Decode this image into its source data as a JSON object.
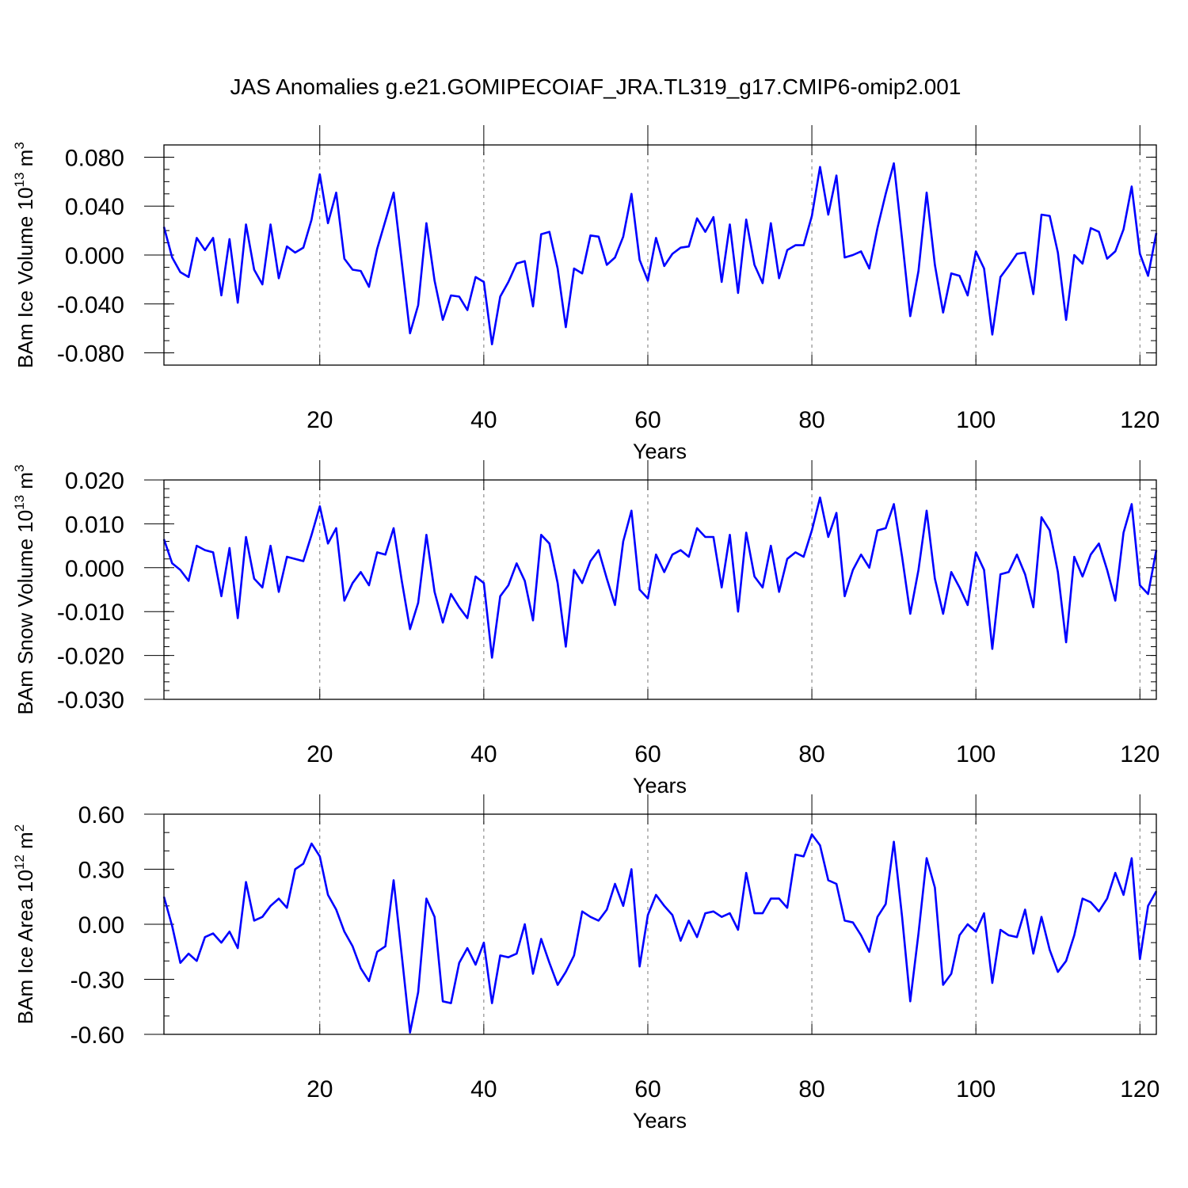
{
  "figure_title": "JAS Anomalies g.e21.GOMIPECOIAF_JRA.TL319_g17.CMIP6-omip2.001",
  "line_color": "#0000ff",
  "chart_data": [
    {
      "type": "line",
      "ylabel": "BAm Ice Volume 10",
      "ylabel_exp": "13",
      "ylabel_unit": " m",
      "ylabel_unit_exp": "3",
      "xlabel": "Years",
      "xlim": [
        1,
        122
      ],
      "ylim": [
        -0.09,
        0.09
      ],
      "x_ticks": [
        20,
        40,
        60,
        80,
        100,
        120
      ],
      "x_tick_labels": [
        "20",
        "40",
        "60",
        "80",
        "100",
        "120"
      ],
      "y_ticks": [
        -0.08,
        -0.04,
        0.0,
        0.04,
        0.08
      ],
      "y_tick_labels": [
        "-0.080",
        "-0.040",
        "0.000",
        "0.040",
        "0.080"
      ],
      "y_minor_step": 0.01,
      "grid": "vertical dashed at major x ticks",
      "values": [
        0.023,
        -0.002,
        -0.014,
        -0.018,
        0.014,
        0.004,
        0.014,
        -0.033,
        0.013,
        -0.039,
        0.025,
        -0.012,
        -0.024,
        0.025,
        -0.019,
        0.007,
        0.002,
        0.006,
        0.029,
        0.066,
        0.026,
        0.051,
        -0.003,
        -0.012,
        -0.013,
        -0.026,
        0.005,
        0.028,
        0.051,
        -0.006,
        -0.064,
        -0.041,
        0.026,
        -0.021,
        -0.053,
        -0.033,
        -0.034,
        -0.045,
        -0.018,
        -0.022,
        -0.073,
        -0.034,
        -0.022,
        -0.007,
        -0.005,
        -0.042,
        0.017,
        0.019,
        -0.011,
        -0.059,
        -0.011,
        -0.015,
        0.016,
        0.015,
        -0.008,
        -0.002,
        0.015,
        0.05,
        -0.004,
        -0.021,
        0.014,
        -0.009,
        0.001,
        0.006,
        0.007,
        0.03,
        0.019,
        0.031,
        -0.022,
        0.025,
        -0.031,
        0.029,
        -0.008,
        -0.023,
        0.026,
        -0.019,
        0.004,
        0.008,
        0.008,
        0.032,
        0.072,
        0.033,
        0.065,
        -0.002,
        0.0,
        0.003,
        -0.011,
        0.022,
        0.05,
        0.075,
        0.013,
        -0.05,
        -0.013,
        0.051,
        -0.008,
        -0.047,
        -0.015,
        -0.017,
        -0.033,
        0.003,
        -0.011,
        -0.065,
        -0.018,
        -0.009,
        0.001,
        0.002,
        -0.032,
        0.033,
        0.032,
        0.002,
        -0.053,
        0.0,
        -0.007,
        0.022,
        0.019,
        -0.003,
        0.003,
        0.021,
        0.056,
        0.001,
        -0.017,
        0.018
      ]
    },
    {
      "type": "line",
      "ylabel": "BAm Snow Volume 10",
      "ylabel_exp": "13",
      "ylabel_unit": " m",
      "ylabel_unit_exp": "3",
      "xlabel": "Years",
      "xlim": [
        1,
        122
      ],
      "ylim": [
        -0.03,
        0.02
      ],
      "x_ticks": [
        20,
        40,
        60,
        80,
        100,
        120
      ],
      "x_tick_labels": [
        "20",
        "40",
        "60",
        "80",
        "100",
        "120"
      ],
      "y_ticks": [
        -0.03,
        -0.02,
        -0.01,
        0.0,
        0.01,
        0.02
      ],
      "y_tick_labels": [
        "-0.030",
        "-0.020",
        "-0.010",
        "0.000",
        "0.010",
        "0.020"
      ],
      "y_minor_step": 0.002,
      "grid": "vertical dashed at major x ticks",
      "values": [
        0.0065,
        0.001,
        -0.0005,
        -0.003,
        0.005,
        0.004,
        0.0035,
        -0.0065,
        0.0045,
        -0.0115,
        0.007,
        -0.0025,
        -0.0045,
        0.005,
        -0.0055,
        0.0025,
        0.002,
        0.0015,
        0.0075,
        0.014,
        0.0055,
        0.009,
        -0.0075,
        -0.0035,
        -0.001,
        -0.004,
        0.0035,
        0.003,
        0.009,
        -0.003,
        -0.014,
        -0.008,
        0.0075,
        -0.0055,
        -0.0125,
        -0.006,
        -0.009,
        -0.0115,
        -0.002,
        -0.0035,
        -0.0205,
        -0.0065,
        -0.004,
        0.001,
        -0.003,
        -0.012,
        0.0075,
        0.0055,
        -0.0035,
        -0.018,
        -0.0005,
        -0.0035,
        0.0015,
        0.004,
        -0.0025,
        -0.0085,
        0.006,
        0.013,
        -0.005,
        -0.007,
        0.003,
        -0.001,
        0.003,
        0.004,
        0.0025,
        0.009,
        0.007,
        0.007,
        -0.0045,
        0.0075,
        -0.01,
        0.008,
        -0.002,
        -0.0045,
        0.005,
        -0.0055,
        0.002,
        0.0035,
        0.0025,
        0.0085,
        0.016,
        0.007,
        0.0125,
        -0.0065,
        -0.0005,
        0.003,
        0.0,
        0.0085,
        0.009,
        0.0145,
        0.0025,
        -0.0105,
        -0.0005,
        0.013,
        -0.0025,
        -0.0105,
        -0.001,
        -0.0045,
        -0.0085,
        0.0035,
        -0.0005,
        -0.0185,
        -0.0015,
        -0.001,
        0.003,
        -0.0015,
        -0.009,
        0.0115,
        0.0085,
        -0.001,
        -0.017,
        0.0025,
        -0.002,
        0.003,
        0.0055,
        -0.0005,
        -0.0075,
        0.008,
        0.0145,
        -0.004,
        -0.006,
        0.004
      ]
    },
    {
      "type": "line",
      "ylabel": "BAm Ice Area 10",
      "ylabel_exp": "12",
      "ylabel_unit": " m",
      "ylabel_unit_exp": "2",
      "xlabel": "Years",
      "xlim": [
        1,
        122
      ],
      "ylim": [
        -0.6,
        0.6
      ],
      "x_ticks": [
        20,
        40,
        60,
        80,
        100,
        120
      ],
      "x_tick_labels": [
        "20",
        "40",
        "60",
        "80",
        "100",
        "120"
      ],
      "y_ticks": [
        -0.6,
        -0.3,
        0.0,
        0.3,
        0.6
      ],
      "y_tick_labels": [
        "-0.60",
        "-0.30",
        "0.00",
        "0.30",
        "0.60"
      ],
      "y_minor_step": 0.1,
      "grid": "vertical dashed at major x ticks",
      "values": [
        0.15,
        -0.01,
        -0.21,
        -0.16,
        -0.2,
        -0.07,
        -0.05,
        -0.1,
        -0.04,
        -0.13,
        0.23,
        0.02,
        0.04,
        0.1,
        0.14,
        0.09,
        0.3,
        0.33,
        0.44,
        0.37,
        0.16,
        0.08,
        -0.04,
        -0.12,
        -0.24,
        -0.31,
        -0.15,
        -0.12,
        0.24,
        -0.17,
        -0.59,
        -0.37,
        0.14,
        0.04,
        -0.42,
        -0.43,
        -0.21,
        -0.13,
        -0.22,
        -0.1,
        -0.43,
        -0.17,
        -0.18,
        -0.16,
        0.0,
        -0.27,
        -0.08,
        -0.21,
        -0.33,
        -0.26,
        -0.17,
        0.07,
        0.04,
        0.02,
        0.08,
        0.22,
        0.1,
        0.3,
        -0.23,
        0.05,
        0.16,
        0.1,
        0.05,
        -0.09,
        0.02,
        -0.07,
        0.06,
        0.07,
        0.04,
        0.06,
        -0.03,
        0.28,
        0.06,
        0.06,
        0.14,
        0.14,
        0.09,
        0.38,
        0.37,
        0.49,
        0.43,
        0.24,
        0.22,
        0.02,
        0.01,
        -0.06,
        -0.15,
        0.04,
        0.11,
        0.45,
        0.04,
        -0.42,
        -0.05,
        0.36,
        0.2,
        -0.33,
        -0.27,
        -0.06,
        0.0,
        -0.04,
        0.06,
        -0.32,
        -0.03,
        -0.06,
        -0.07,
        0.08,
        -0.16,
        0.04,
        -0.14,
        -0.26,
        -0.2,
        -0.06,
        0.14,
        0.12,
        0.07,
        0.14,
        0.28,
        0.16,
        0.36,
        -0.19,
        0.1,
        0.18
      ]
    }
  ]
}
